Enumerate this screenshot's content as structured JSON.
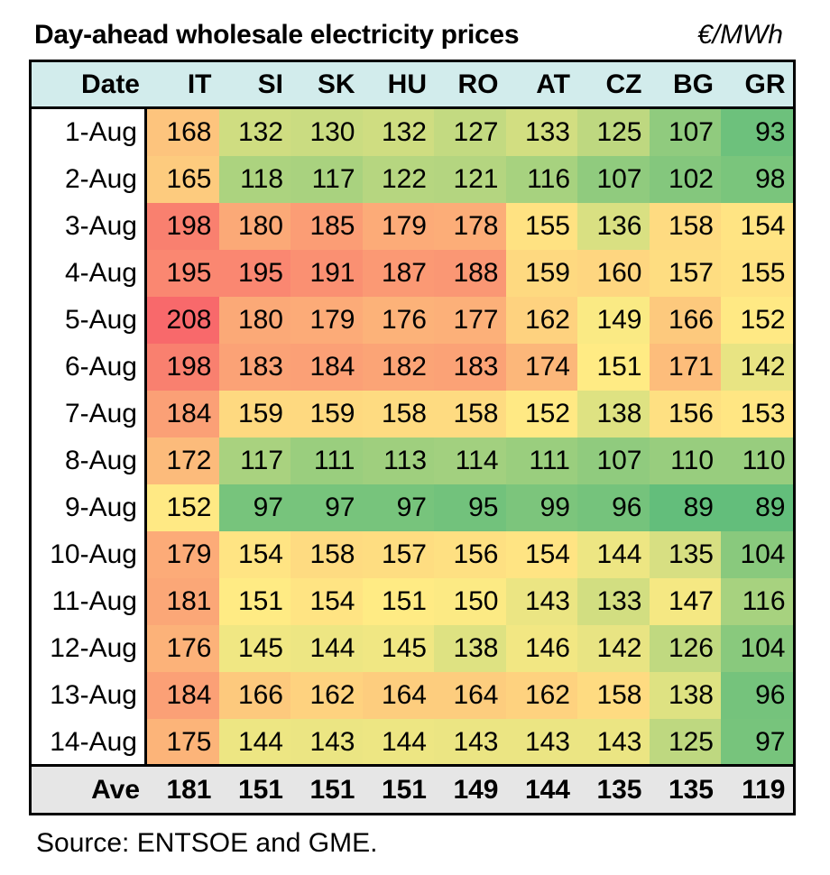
{
  "chart_data": {
    "type": "heatmap",
    "title": "Day-ahead wholesale electricity prices",
    "unit": "€/MWh",
    "date_header": "Date",
    "columns": [
      "IT",
      "SI",
      "SK",
      "HU",
      "RO",
      "AT",
      "CZ",
      "BG",
      "GR"
    ],
    "rows": [
      {
        "date": "1-Aug",
        "values": [
          168,
          132,
          130,
          132,
          127,
          133,
          125,
          107,
          93
        ]
      },
      {
        "date": "2-Aug",
        "values": [
          165,
          118,
          117,
          122,
          121,
          116,
          107,
          102,
          98
        ]
      },
      {
        "date": "3-Aug",
        "values": [
          198,
          180,
          185,
          179,
          178,
          155,
          136,
          158,
          154
        ]
      },
      {
        "date": "4-Aug",
        "values": [
          195,
          195,
          191,
          187,
          188,
          159,
          160,
          157,
          155
        ]
      },
      {
        "date": "5-Aug",
        "values": [
          208,
          180,
          179,
          176,
          177,
          162,
          149,
          166,
          152
        ]
      },
      {
        "date": "6-Aug",
        "values": [
          198,
          183,
          184,
          182,
          183,
          174,
          151,
          171,
          142
        ]
      },
      {
        "date": "7-Aug",
        "values": [
          184,
          159,
          159,
          158,
          158,
          152,
          138,
          156,
          153
        ]
      },
      {
        "date": "8-Aug",
        "values": [
          172,
          117,
          111,
          113,
          114,
          111,
          107,
          110,
          110
        ]
      },
      {
        "date": "9-Aug",
        "values": [
          152,
          97,
          97,
          97,
          95,
          99,
          96,
          89,
          89
        ]
      },
      {
        "date": "10-Aug",
        "values": [
          179,
          154,
          158,
          157,
          156,
          154,
          144,
          135,
          104
        ]
      },
      {
        "date": "11-Aug",
        "values": [
          181,
          151,
          154,
          151,
          150,
          143,
          133,
          147,
          116
        ]
      },
      {
        "date": "12-Aug",
        "values": [
          176,
          145,
          144,
          145,
          138,
          146,
          142,
          126,
          104
        ]
      },
      {
        "date": "13-Aug",
        "values": [
          184,
          166,
          162,
          164,
          164,
          162,
          158,
          138,
          96
        ]
      },
      {
        "date": "14-Aug",
        "values": [
          175,
          144,
          143,
          144,
          143,
          143,
          143,
          125,
          97
        ]
      }
    ],
    "average": {
      "label": "Ave",
      "values": [
        181,
        151,
        151,
        151,
        149,
        144,
        135,
        135,
        119
      ]
    },
    "color_scale": {
      "low": "#63be7b",
      "mid": "#ffeb84",
      "high": "#f8696b"
    }
  },
  "source": "Source: ENTSOE and GME."
}
